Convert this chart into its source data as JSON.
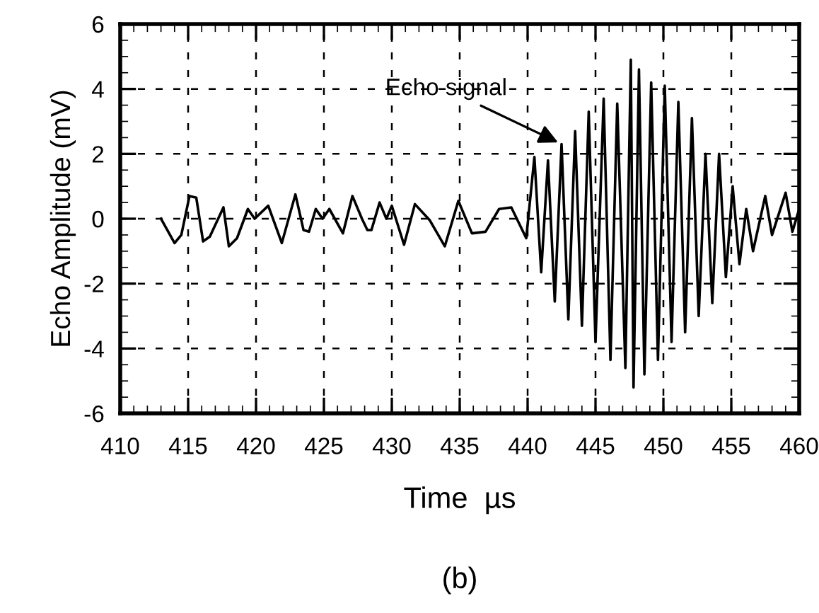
{
  "chart_data": {
    "type": "line",
    "xlabel": "Time  µs",
    "ylabel": "Echo Amplitude (mV)",
    "xlim": [
      410,
      460
    ],
    "xticks": [
      410,
      415,
      420,
      425,
      430,
      435,
      440,
      445,
      450,
      455,
      460
    ],
    "ylim": [
      -6,
      6
    ],
    "yticks": [
      -6,
      -4,
      -2,
      0,
      2,
      4,
      6
    ],
    "grid": true,
    "marker": "none",
    "line_style": "solid",
    "series": [
      {
        "color": "#000000",
        "x": [
          413.0,
          414.0,
          414.5,
          415.1,
          415.6,
          416.1,
          416.6,
          417.6,
          418.0,
          418.6,
          419.4,
          419.9,
          420.9,
          421.9,
          422.9,
          423.5,
          423.9,
          424.4,
          424.9,
          425.4,
          426.4,
          427.1,
          427.8,
          428.2,
          428.5,
          429.1,
          429.6,
          430.0,
          430.9,
          431.7,
          432.8,
          433.9,
          434.9,
          435.9,
          436.9,
          437.9,
          438.8,
          439.9,
          440.5,
          441.0,
          441.5,
          442.0,
          442.5,
          443.0,
          443.5,
          444.0,
          444.5,
          445.0,
          445.6,
          446.1,
          446.6,
          447.2,
          447.6,
          447.8,
          448.2,
          448.6,
          449.1,
          449.6,
          450.1,
          450.6,
          451.1,
          451.6,
          452.1,
          452.6,
          453.1,
          453.6,
          454.1,
          454.6,
          455.1,
          455.6,
          456.1,
          456.6,
          457.5,
          458.0,
          459.0,
          459.5,
          460.0
        ],
        "values": [
          0,
          -0.75,
          -0.5,
          0.7,
          0.65,
          -0.7,
          -0.55,
          0.35,
          -0.85,
          -0.6,
          0.3,
          0,
          0.4,
          -0.75,
          0.75,
          -0.35,
          -0.4,
          0.3,
          0,
          0.3,
          -0.45,
          0.7,
          0,
          -0.35,
          -0.35,
          0.5,
          0,
          0.4,
          -0.8,
          0.45,
          -0.05,
          -0.85,
          0.55,
          -0.45,
          -0.4,
          0.3,
          0.35,
          -0.6,
          1.9,
          -1.65,
          1.8,
          -2.55,
          2.3,
          -3.1,
          2.7,
          -3.3,
          3.3,
          -3.8,
          3.7,
          -4.35,
          3.55,
          -4.6,
          4.9,
          -5.2,
          4.6,
          -4.8,
          4.2,
          -4.35,
          4.1,
          -3.8,
          3.6,
          -3.5,
          3.1,
          -3.0,
          2.0,
          -2.6,
          2.0,
          -1.8,
          1.0,
          -1.4,
          0.3,
          -1.0,
          0.7,
          -0.5,
          0.8,
          -0.4,
          0.3
        ]
      }
    ],
    "annotations": [
      {
        "text": "Echo signal",
        "x": 442.5,
        "y": 2.3
      },
      "(b)"
    ]
  }
}
